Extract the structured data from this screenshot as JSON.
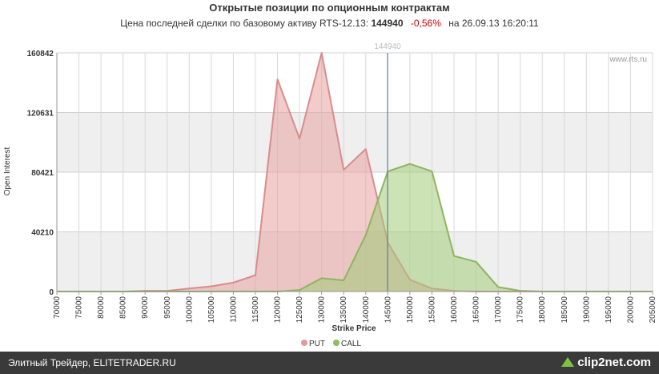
{
  "header": {
    "title": "Открытые позиции по опционным контрактам",
    "subtitle_prefix": "Цена последней сделки по базовому активу RTS-12.13:",
    "last_price": "144940",
    "change": "-0,56%",
    "date_text": "на 26.09.13 16:20:11"
  },
  "watermark": "www.rts.ru",
  "footer": {
    "left_text": "Элитный Трейдер, ELITETRADER.RU",
    "brand": "clip2net.com"
  },
  "chart_data": {
    "type": "area",
    "xlabel": "Strike Price",
    "ylabel": "Open Interest",
    "x": [
      70000,
      75000,
      80000,
      85000,
      90000,
      95000,
      100000,
      105000,
      110000,
      115000,
      120000,
      125000,
      130000,
      135000,
      140000,
      145000,
      150000,
      155000,
      160000,
      165000,
      170000,
      175000,
      180000,
      185000,
      190000,
      195000,
      200000,
      205000
    ],
    "xlim": [
      70000,
      205000
    ],
    "ylim": [
      0,
      160842
    ],
    "yticks": [
      0,
      40210,
      80421,
      120631,
      160842
    ],
    "marker": {
      "x": 144940,
      "label": "144940"
    },
    "series": [
      {
        "name": "PUT",
        "color": "#e8a1a1",
        "values": [
          0,
          0,
          0,
          0,
          500,
          500,
          2000,
          3500,
          6000,
          11000,
          143000,
          103000,
          160842,
          82000,
          96000,
          33000,
          8000,
          2000,
          500,
          0,
          0,
          0,
          0,
          0,
          0,
          0,
          0,
          0
        ]
      },
      {
        "name": "CALL",
        "color": "#a3cc7a",
        "values": [
          0,
          0,
          0,
          0,
          0,
          0,
          0,
          0,
          0,
          0,
          0,
          1000,
          9000,
          7500,
          38000,
          81000,
          86000,
          81000,
          24000,
          20000,
          3000,
          500,
          0,
          0,
          0,
          0,
          0,
          0
        ]
      }
    ],
    "grid": true,
    "legend_position": "bottom-center"
  }
}
